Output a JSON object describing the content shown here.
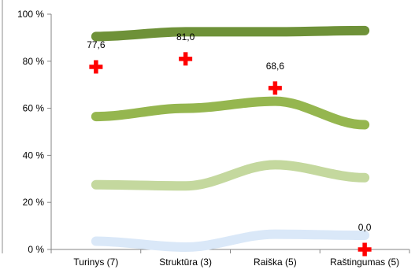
{
  "chart_data": {
    "type": "line",
    "title": "",
    "xlabel": "",
    "ylabel": "",
    "categories": [
      "Turinys (7)",
      "Struktūra (3)",
      "Raiška (5)",
      "Raštingumas (5)"
    ],
    "y_axis": {
      "min": 0,
      "max": 100,
      "tick_values": [
        0,
        20,
        40,
        60,
        80,
        100
      ],
      "tick_labels": [
        "0 %",
        "20 %",
        "40 %",
        "60 %",
        "80 %",
        "100 %"
      ]
    },
    "grid": false,
    "legend": "none",
    "series": [
      {
        "type": "line",
        "color": "#dae8f8",
        "values": [
          3.5,
          1.0,
          6.5,
          6.0
        ]
      },
      {
        "type": "line",
        "color": "#c4d89e",
        "values": [
          27.5,
          27.0,
          36.0,
          30.5
        ]
      },
      {
        "type": "line",
        "color": "#95b64f",
        "values": [
          56.5,
          60.0,
          63.0,
          53.0
        ]
      },
      {
        "type": "line",
        "color": "#6e9138",
        "values": [
          90.5,
          92.5,
          92.5,
          93.0
        ]
      },
      {
        "type": "marker",
        "marker": "cross",
        "color": "#ff0000",
        "values": [
          77.6,
          81.0,
          68.6,
          0.0
        ],
        "data_labels": [
          "77,6",
          "81,0",
          "68,6",
          "0,0"
        ]
      }
    ]
  }
}
